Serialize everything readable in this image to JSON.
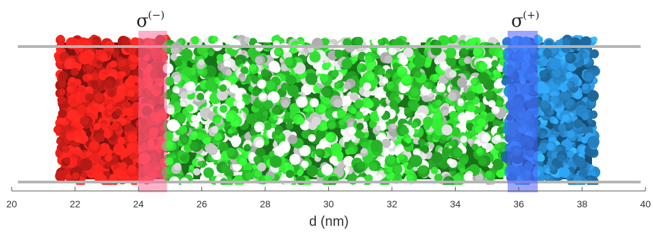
{
  "axis": {
    "xlabel": "d (nm)",
    "range": [
      20,
      40
    ],
    "ticks": [
      20,
      22,
      24,
      26,
      28,
      30,
      32,
      34,
      36,
      38,
      40
    ]
  },
  "sigma_minus": {
    "symbol": "σ",
    "sup": "(−)",
    "from": 24.0,
    "to": 24.9
  },
  "sigma_plus": {
    "symbol": "σ",
    "sup": "(+)",
    "from": 35.65,
    "to": 36.6
  },
  "regions": [
    {
      "name": "red-region",
      "from": 21.5,
      "to": 24.9,
      "color": "#e8221c"
    },
    {
      "name": "mixed-region",
      "from": 24.9,
      "to": 35.6,
      "color": "#2ed02e",
      "secondary_color": "#f2f2f2"
    },
    {
      "name": "blue-region",
      "from": 35.6,
      "to": 38.4,
      "color": "#2a8fd6"
    }
  ],
  "colors": {
    "electrode_lines": "#b8b8b8",
    "sigma_minus_band": "#ff6f9a",
    "sigma_plus_band": "#4a5cff",
    "axis": "#444444"
  }
}
